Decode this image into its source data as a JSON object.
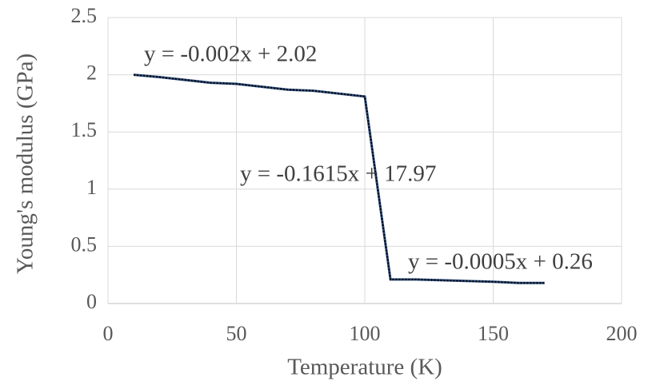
{
  "chart_data": {
    "type": "line",
    "x_label": "Temperature  (K)",
    "y_label": "Young's modulus (GPa)",
    "xlim": [
      0,
      200
    ],
    "xticks": [
      0,
      50,
      100,
      150,
      200
    ],
    "ylim": [
      0,
      2.5
    ],
    "yticks": [
      0,
      0.5,
      1,
      1.5,
      2,
      2.5
    ],
    "grid": true,
    "series": [
      {
        "color": "#2b4c7e",
        "x": [
          10,
          20,
          40,
          50,
          70,
          80,
          100,
          110,
          120,
          150,
          160,
          170
        ],
        "values": [
          2.0,
          1.98,
          1.93,
          1.92,
          1.87,
          1.86,
          1.81,
          0.21,
          0.21,
          0.19,
          0.18,
          0.18
        ]
      }
    ],
    "annotations": [
      "y = -0.002x + 2.02",
      "y = -0.1615x + 17.97",
      "y = -0.0005x + 0.26"
    ]
  }
}
